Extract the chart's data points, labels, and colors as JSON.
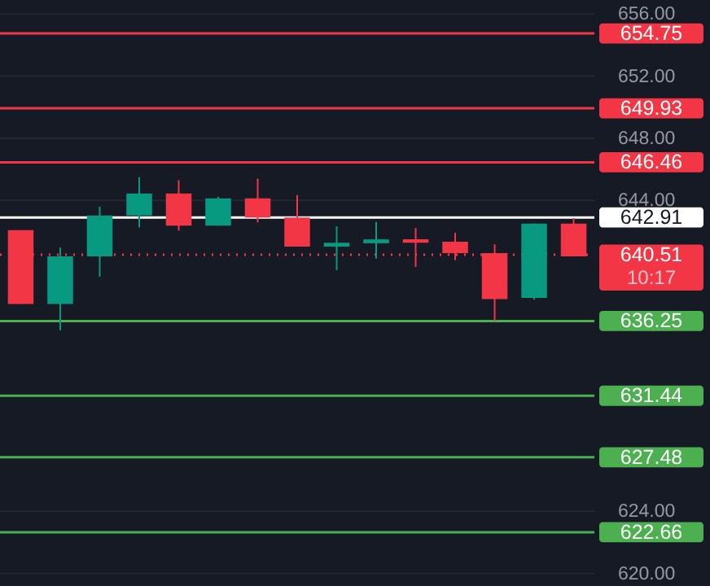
{
  "chart_data": {
    "type": "candlestick",
    "categories": [
      null,
      null,
      null,
      null,
      null,
      null,
      null,
      null,
      null,
      null,
      null,
      null,
      null,
      null,
      null
    ],
    "ohlc": [
      [
        642.09,
        642.09,
        637.34,
        637.34
      ],
      [
        637.34,
        640.97,
        635.65,
        640.4
      ],
      [
        640.4,
        643.61,
        639.1,
        643.04
      ],
      [
        643.04,
        645.51,
        642.27,
        644.45
      ],
      [
        644.45,
        645.3,
        642.06,
        642.38
      ],
      [
        642.38,
        644.24,
        642.38,
        644.14
      ],
      [
        644.14,
        645.4,
        642.59,
        642.9
      ],
      [
        642.9,
        644.35,
        641.04,
        641.04
      ],
      [
        641.04,
        642.34,
        639.52,
        641.28
      ],
      [
        641.25,
        642.62,
        640.26,
        641.5
      ],
      [
        641.5,
        642.23,
        639.73,
        641.28
      ],
      [
        641.35,
        641.92,
        640.16,
        640.61
      ],
      [
        640.61,
        641.18,
        636.25,
        637.66
      ],
      [
        637.73,
        642.52,
        637.62,
        642.52
      ],
      [
        642.52,
        642.87,
        640.4,
        640.4
      ]
    ],
    "colors": [
      "#f23645",
      "#089981",
      "#089981",
      "#089981",
      "#f23645",
      "#089981",
      "#f23645",
      "#f23645",
      "#089981",
      "#089981",
      "#f23645",
      "#f23645",
      "#f23645",
      "#089981",
      "#f23645"
    ],
    "ylim": [
      619.2,
      656.9
    ],
    "yticks": [
      {
        "value": 620,
        "label": "620.00"
      },
      {
        "value": 624,
        "label": "624.00"
      },
      {
        "value": 644,
        "label": "644.00"
      },
      {
        "value": 648,
        "label": "648.00"
      },
      {
        "value": 652,
        "label": "652.00"
      },
      {
        "value": 656,
        "label": "656.00"
      }
    ],
    "grid": "y",
    "tick_labels": "y",
    "ref_lines": [
      {
        "axis": "y",
        "value": 654.75,
        "label": "654.75",
        "color": "#f23645"
      },
      {
        "axis": "y",
        "value": 649.93,
        "label": "649.93",
        "color": "#f23645"
      },
      {
        "axis": "y",
        "value": 646.46,
        "label": "646.46",
        "color": "#f23645"
      },
      {
        "axis": "y",
        "value": 642.91,
        "label": "642.91",
        "color": "#ffffff"
      },
      {
        "axis": "y",
        "value": 640.51,
        "label": "640.51",
        "color": "#f23645",
        "line_style": "dotted"
      },
      {
        "axis": "y",
        "value": 636.25,
        "label": "636.25",
        "color": "#4caf50"
      },
      {
        "axis": "y",
        "value": 631.44,
        "label": "631.44",
        "color": "#4caf50"
      },
      {
        "axis": "y",
        "value": 627.48,
        "label": "627.48",
        "color": "#4caf50"
      },
      {
        "axis": "y",
        "value": 622.66,
        "label": "622.66",
        "color": "#4caf50"
      }
    ],
    "annotations": [
      "10:17"
    ]
  }
}
